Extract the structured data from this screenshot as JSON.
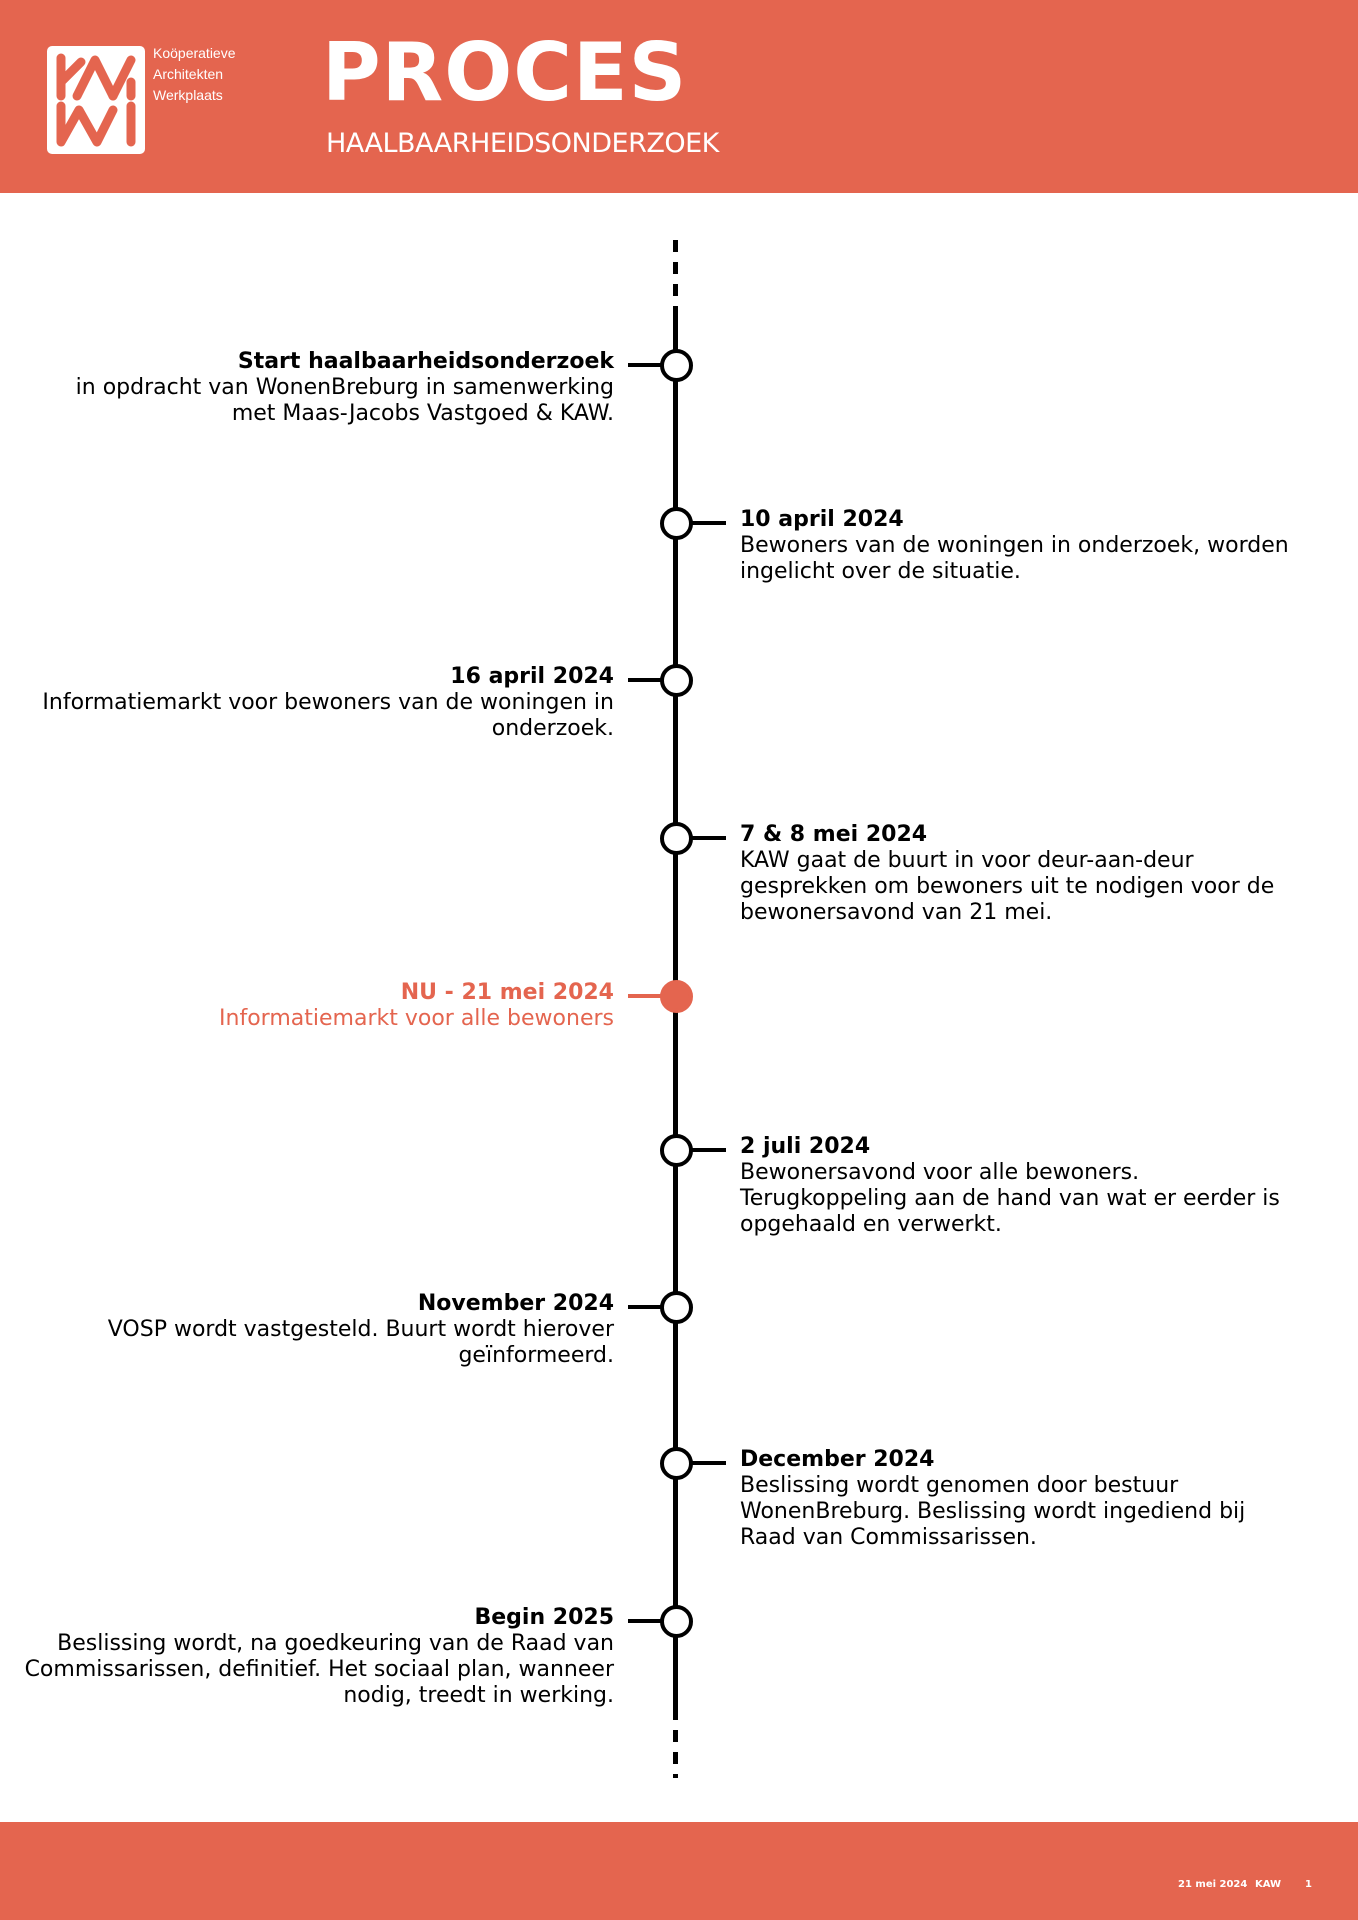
{
  "header": {
    "logo_text": [
      "Koöperatieve",
      "Architekten",
      "Werkplaats"
    ],
    "logo_mark": "KAW",
    "title": "PROCES",
    "subtitle": "HAALBAARHEIDSONDERZOEK"
  },
  "colors": {
    "accent": "#E4654F",
    "line": "#000000"
  },
  "timeline": [
    {
      "side": "left",
      "title": "Start haalbaarheidsonderzoek",
      "lines": [
        "in opdracht van WonenBreburg in samenwerking",
        "met Maas-Jacobs Vastgoed & KAW."
      ]
    },
    {
      "side": "right",
      "title": "10 april 2024",
      "lines": [
        "Bewoners van de woningen in onderzoek, worden",
        "ingelicht over de situatie."
      ]
    },
    {
      "side": "left",
      "title": "16 april 2024",
      "lines": [
        "Informatiemarkt voor bewoners van de woningen in",
        "onderzoek."
      ]
    },
    {
      "side": "right",
      "title": "7 & 8 mei 2024",
      "lines": [
        "KAW gaat de buurt in voor deur-aan-deur",
        "gesprekken om bewoners uit te nodigen voor de",
        "bewonersavond van 21 mei."
      ]
    },
    {
      "side": "left",
      "current": true,
      "title": "NU - 21 mei 2024",
      "lines": [
        "Informatiemarkt voor alle bewoners"
      ]
    },
    {
      "side": "right",
      "title": "2 juli 2024",
      "lines": [
        "Bewonersavond voor alle bewoners.",
        "Terugkoppeling aan de hand van wat er eerder is",
        "opgehaald en verwerkt."
      ]
    },
    {
      "side": "left",
      "title": "November 2024",
      "lines": [
        "VOSP wordt vastgesteld. Buurt wordt hierover",
        "geïnformeerd."
      ]
    },
    {
      "side": "right",
      "title": "December 2024",
      "lines": [
        "Beslissing wordt genomen door bestuur",
        "WonenBreburg. Beslissing wordt ingediend bij",
        "Raad van Commissarissen."
      ]
    },
    {
      "side": "left",
      "title": "Begin 2025",
      "lines": [
        "Beslissing wordt, na goedkeuring van de Raad van",
        "Commissarissen, definitief. Het sociaal plan, wanneer",
        "nodig, treedt in werking."
      ]
    }
  ],
  "footer": {
    "date": "21 mei 2024",
    "org": "KAW",
    "page": "1"
  }
}
